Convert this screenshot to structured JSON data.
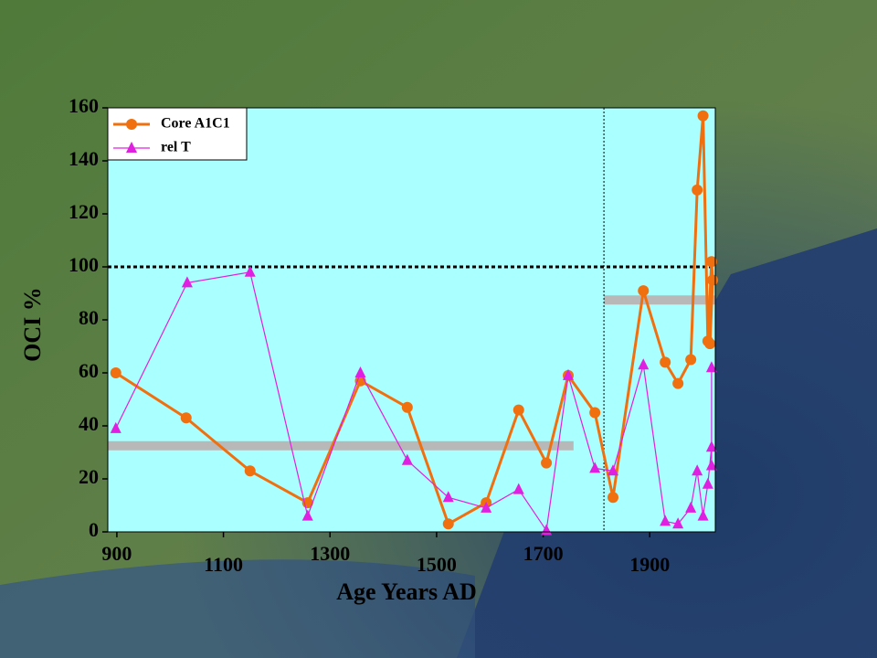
{
  "chart_data": {
    "type": "line",
    "xlabel": "Age Years AD",
    "ylabel": "OCI %",
    "xlim": [
      883,
      2023
    ],
    "xticks": [
      900,
      1100,
      1300,
      1500,
      1700,
      1900
    ],
    "ylim": [
      0,
      160
    ],
    "yticks": [
      0,
      20,
      40,
      60,
      80,
      100,
      120,
      140,
      160
    ],
    "legend": "upper left",
    "reference_line": 100,
    "vline": 1814,
    "bars": [
      {
        "value": 32.5,
        "xrange": [
          883,
          1757
        ]
      },
      {
        "value": 87.5,
        "xrange": [
          1814,
          2023
        ]
      }
    ],
    "series": [
      {
        "name": "Core A1C1",
        "color": "#f07010",
        "marker": "circle",
        "x": [
          898,
          1030,
          1150,
          1258,
          1357,
          1445,
          1522,
          1593,
          1654,
          1706,
          1747,
          1797,
          1831,
          1888,
          1929,
          1953,
          1977,
          1989,
          2000,
          2009,
          2016,
          2018,
          2013
        ],
        "values": [
          60,
          43,
          23,
          11,
          57,
          47,
          3,
          11,
          46,
          26,
          59,
          45,
          13,
          91,
          64,
          56,
          65,
          129,
          157,
          72,
          102,
          95,
          71
        ]
      },
      {
        "name": "rel T",
        "color": "#e020e0",
        "marker": "triangle",
        "x": [
          898,
          1032,
          1150,
          1258,
          1357,
          1445,
          1522,
          1593,
          1654,
          1706,
          1747,
          1797,
          1831,
          1888,
          1929,
          1953,
          1977,
          1989,
          2000,
          2009,
          2016,
          2016,
          2016
        ],
        "values": [
          39,
          94,
          98,
          6,
          60,
          27,
          13,
          9,
          16,
          0.5,
          59,
          24,
          23,
          63,
          4,
          3,
          9,
          23,
          6,
          18,
          32,
          25,
          62
        ]
      }
    ]
  }
}
